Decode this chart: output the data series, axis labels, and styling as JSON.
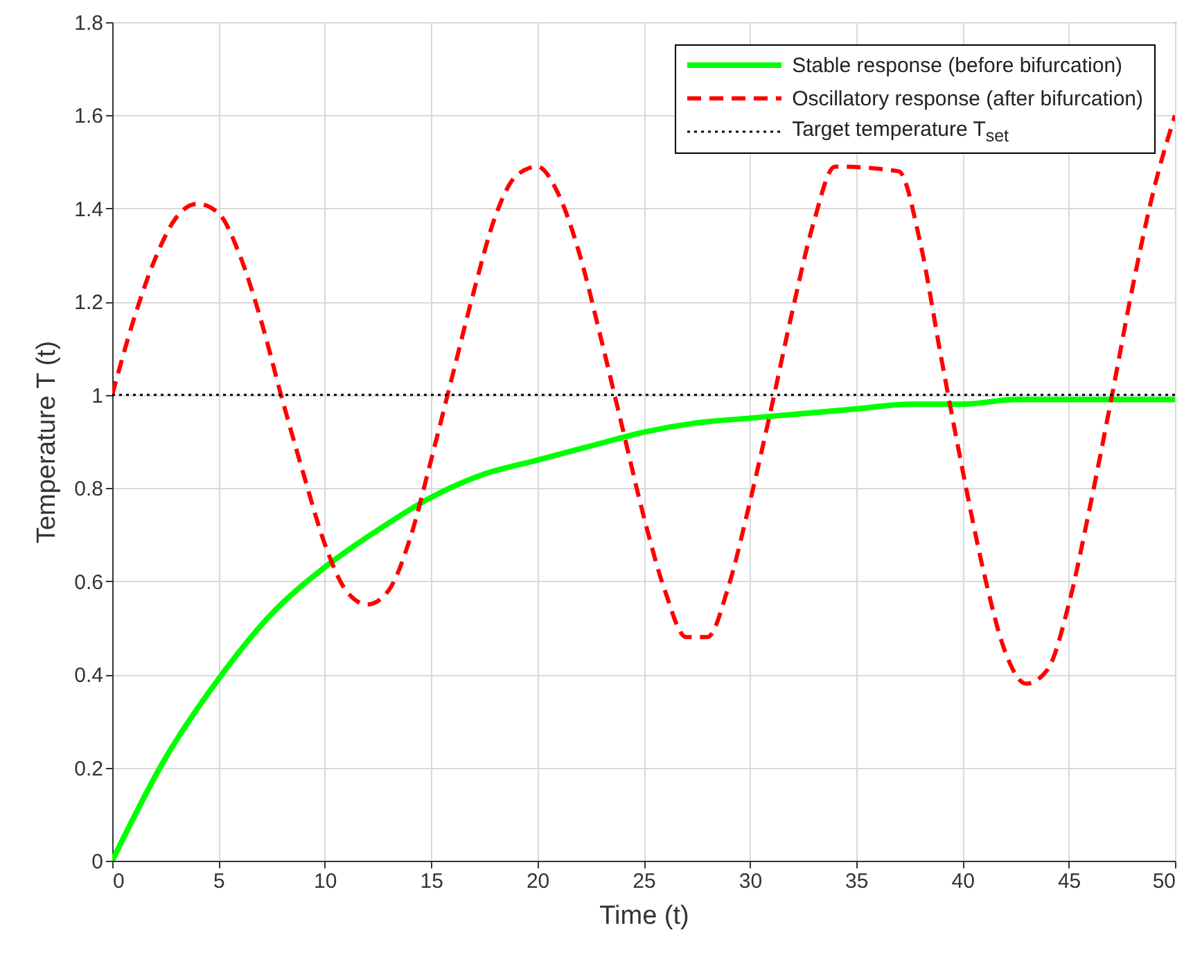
{
  "chart_data": {
    "type": "line",
    "xlabel": "Time (t)",
    "ylabel": "Temperature T (t)",
    "xlim": [
      0,
      50
    ],
    "ylim": [
      0,
      1.8
    ],
    "xticks": [
      0,
      5,
      10,
      15,
      20,
      25,
      30,
      35,
      40,
      45,
      50
    ],
    "yticks": [
      0,
      0.2,
      0.4,
      0.6,
      0.8,
      1,
      1.2,
      1.4,
      1.6,
      1.8
    ],
    "grid": true,
    "legend": "top right",
    "marker": "none",
    "series": [
      {
        "name": "Stable response (before bifurcation)",
        "color": "#00ff00",
        "line_style": "solid",
        "x": [
          0,
          2.5,
          5,
          7.5,
          10,
          12.5,
          15,
          17.5,
          20,
          22.5,
          25,
          27.5,
          30,
          32.5,
          35,
          37.5,
          40,
          42.5,
          45,
          47.5,
          50
        ],
        "values": [
          0,
          0.22,
          0.39,
          0.53,
          0.63,
          0.71,
          0.78,
          0.83,
          0.86,
          0.89,
          0.92,
          0.94,
          0.95,
          0.96,
          0.97,
          0.98,
          0.98,
          0.99,
          0.99,
          0.99,
          0.99
        ]
      },
      {
        "name": "Oscillatory response (after bifurcation)",
        "color": "#ff0000",
        "line_style": "dashed",
        "x": [
          0,
          1,
          2,
          3,
          4,
          5,
          6,
          7,
          8,
          9,
          10,
          11,
          12,
          13,
          14,
          15,
          16,
          17,
          18,
          19,
          20,
          21,
          22,
          23,
          24,
          25,
          26,
          27,
          28,
          29,
          30,
          31,
          32,
          33,
          34,
          37,
          38,
          39,
          40,
          41,
          42,
          43,
          44,
          45,
          46,
          47,
          48,
          49,
          50
        ],
        "values": [
          1,
          1.16,
          1.29,
          1.38,
          1.41,
          1.39,
          1.3,
          1.16,
          0.99,
          0.83,
          0.68,
          0.58,
          0.55,
          0.58,
          0.69,
          0.86,
          1.04,
          1.22,
          1.38,
          1.47,
          1.49,
          1.43,
          1.3,
          1.12,
          0.93,
          0.74,
          0.58,
          0.48,
          0.48,
          0.59,
          0.77,
          0.97,
          1.18,
          1.37,
          1.49,
          1.48,
          1.33,
          1.08,
          0.84,
          0.62,
          0.45,
          0.38,
          0.41,
          0.55,
          0.76,
          0.99,
          1.23,
          1.44,
          1.6
        ]
      }
    ],
    "ref_lines": [
      {
        "axis": "y",
        "value": 1,
        "label": "Target temperature T$_{set}$",
        "color": "#000000",
        "line_style": "dotted"
      }
    ]
  }
}
